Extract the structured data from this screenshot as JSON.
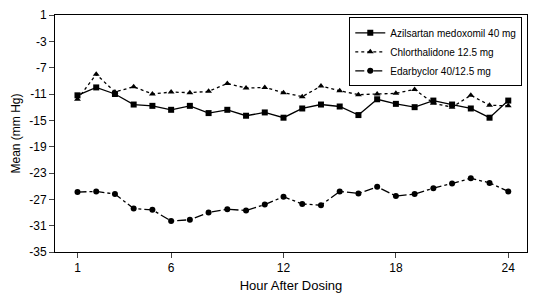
{
  "chart_data": {
    "type": "line",
    "x_label": "Hour After Dosing",
    "y_label": "Mean (mm Hg)",
    "x": [
      1,
      2,
      3,
      4,
      5,
      6,
      7,
      8,
      9,
      10,
      11,
      12,
      13,
      14,
      15,
      16,
      17,
      18,
      19,
      20,
      21,
      22,
      23,
      24
    ],
    "xlim": [
      -0.2,
      25
    ],
    "xticks": [
      1,
      6,
      12,
      18,
      24
    ],
    "ylim": [
      -35,
      1
    ],
    "yticks": [
      1,
      -3,
      -7,
      -11,
      -15,
      -19,
      -23,
      -27,
      -31,
      -35
    ],
    "grid": false,
    "legend": "upper right",
    "series": [
      {
        "name": "Azilsartan medoxomil 40 mg",
        "color": "#000000",
        "marker": "square",
        "line_style": "solid",
        "values": [
          -11.2,
          -10.0,
          -11.0,
          -12.6,
          -12.8,
          -13.4,
          -12.8,
          -13.9,
          -13.4,
          -14.3,
          -13.8,
          -14.6,
          -13.2,
          -12.6,
          -12.9,
          -14.2,
          -11.8,
          -12.5,
          -13.0,
          -12.0,
          -12.6,
          -13.2,
          -14.6,
          -12.0
        ]
      },
      {
        "name": "Chlorthalidone 12.5 mg",
        "color": "#000000",
        "marker": "triangle",
        "line_style": "dotted",
        "values": [
          -11.8,
          -8.0,
          -10.7,
          -9.9,
          -11.0,
          -10.7,
          -10.8,
          -10.6,
          -9.4,
          -10.1,
          -10.0,
          -10.8,
          -11.4,
          -9.8,
          -10.5,
          -11.1,
          -11.0,
          -10.9,
          -10.3,
          -12.4,
          -13.0,
          -11.2,
          -12.7,
          -12.8
        ]
      },
      {
        "name": "Edarbyclor 40/12.5 mg",
        "color": "#000000",
        "marker": "circle",
        "line_style": "dashdot",
        "values": [
          -25.9,
          -25.8,
          -26.2,
          -28.4,
          -28.6,
          -30.3,
          -30.1,
          -29.0,
          -28.5,
          -28.7,
          -27.8,
          -26.6,
          -27.7,
          -27.9,
          -25.8,
          -26.1,
          -25.1,
          -26.5,
          -26.2,
          -25.3,
          -24.6,
          -23.8,
          -24.5,
          -25.8
        ]
      }
    ]
  }
}
